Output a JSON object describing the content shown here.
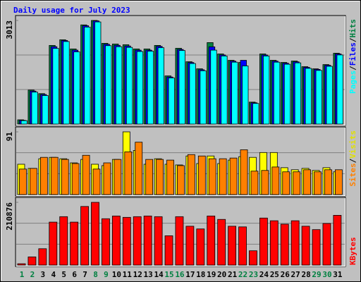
{
  "chart_data": [
    {
      "type": "bar",
      "title": "Daily usage for July 2023",
      "ylim": [
        0,
        3013
      ],
      "yticks": [
        3013
      ],
      "grid": true,
      "legend_separator": "/",
      "series": [
        {
          "name": "Hits",
          "color": "#008040",
          "values": [
            124,
            989,
            886,
            2287,
            2451,
            2184,
            2884,
            3013,
            2348,
            2328,
            2307,
            2184,
            2184,
            2287,
            1401,
            2204,
            1813,
            1607,
            2369,
            2039,
            1854,
            1792,
            639,
            2039,
            1854,
            1792,
            1833,
            1669,
            1607,
            1730,
            2060
          ]
        },
        {
          "name": "Files",
          "color": "#0000ff",
          "values": [
            110,
            960,
            860,
            2250,
            2430,
            2150,
            2860,
            3000,
            2320,
            2290,
            2270,
            2150,
            2150,
            2260,
            1370,
            2170,
            1790,
            1580,
            2245,
            2010,
            1830,
            1854,
            620,
            2010,
            1830,
            1770,
            1810,
            1650,
            1590,
            1710,
            2040
          ]
        },
        {
          "name": "Pages",
          "color": "#00ffff",
          "values": [
            100,
            930,
            830,
            2200,
            2400,
            2100,
            2820,
            2970,
            2280,
            2250,
            2230,
            2110,
            2120,
            2220,
            1340,
            2140,
            1760,
            1550,
            2150,
            1980,
            1800,
            1690,
            600,
            1980,
            1800,
            1740,
            1780,
            1620,
            1560,
            1680,
            2010
          ]
        }
      ]
    },
    {
      "type": "bar",
      "ylim": [
        0,
        91
      ],
      "yticks": [
        91
      ],
      "grid": true,
      "legend_separator": "/",
      "series": [
        {
          "name": "Visits",
          "color": "#ffff00",
          "values": [
            44,
            38,
            52,
            54,
            52,
            46,
            51,
            44,
            42,
            51,
            91,
            64,
            44,
            52,
            44,
            43,
            56,
            45,
            56,
            45,
            50,
            55,
            54,
            61,
            61,
            39,
            36,
            38,
            35,
            39,
            33
          ]
        },
        {
          "name": "Sites",
          "color": "#ff8000",
          "values": [
            37,
            38,
            54,
            54,
            51,
            45,
            57,
            37,
            46,
            51,
            62,
            76,
            51,
            51,
            50,
            42,
            58,
            56,
            52,
            52,
            53,
            65,
            34,
            35,
            40,
            33,
            33,
            36,
            33,
            36,
            36
          ]
        }
      ]
    },
    {
      "type": "bar",
      "ylim": [
        0,
        210876
      ],
      "yticks": [
        210876
      ],
      "grid": true,
      "categories": [
        "1",
        "2",
        "3",
        "4",
        "5",
        "6",
        "7",
        "8",
        "9",
        "10",
        "11",
        "12",
        "13",
        "14",
        "15",
        "16",
        "17",
        "18",
        "19",
        "20",
        "21",
        "22",
        "23",
        "24",
        "25",
        "26",
        "27",
        "28",
        "29",
        "30",
        "31"
      ],
      "category_colors": [
        "#008040",
        "#008040",
        "#000000",
        "#000000",
        "#000000",
        "#000000",
        "#000000",
        "#008040",
        "#008040",
        "#000000",
        "#000000",
        "#000000",
        "#000000",
        "#000000",
        "#008040",
        "#008040",
        "#000000",
        "#000000",
        "#000000",
        "#000000",
        "#000000",
        "#008040",
        "#008040",
        "#000000",
        "#000000",
        "#000000",
        "#000000",
        "#000000",
        "#008040",
        "#008040",
        "#000000"
      ],
      "series": [
        {
          "name": "KBytes",
          "color": "#ff0000",
          "values": [
            4500,
            27500,
            55000,
            144400,
            162700,
            144400,
            197000,
            210876,
            155800,
            165000,
            160400,
            162700,
            165000,
            162700,
            98500,
            162700,
            130600,
            121500,
            165000,
            153500,
            130600,
            128400,
            48100,
            158100,
            149000,
            137500,
            149000,
            130600,
            119200,
            139800,
            167300
          ]
        }
      ]
    }
  ]
}
